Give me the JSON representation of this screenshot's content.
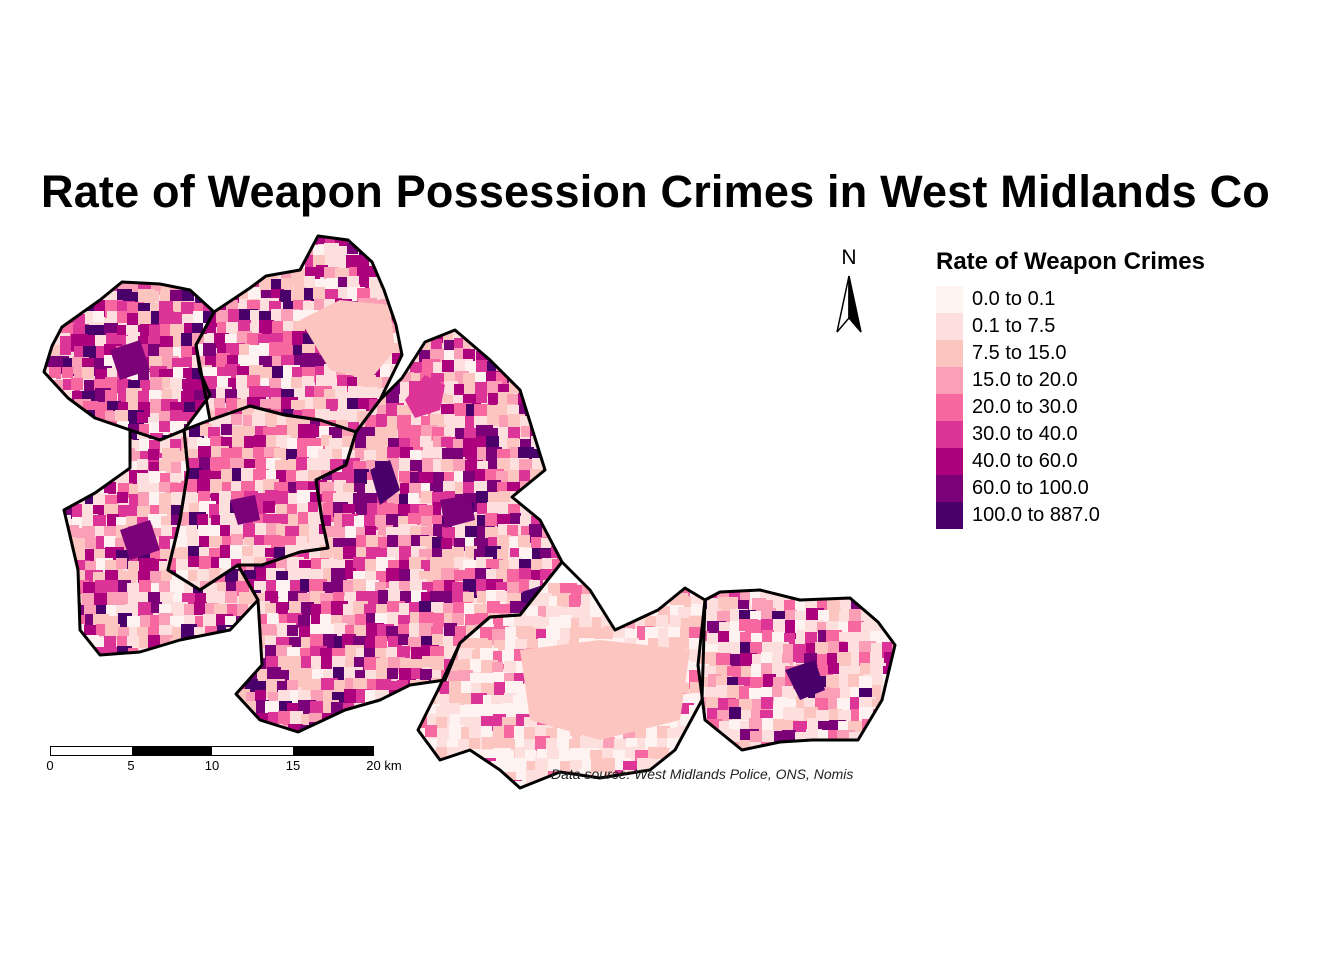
{
  "title": "Rate of Weapon Possession Crimes in West Midlands Co",
  "legend": {
    "title": "Rate of Weapon Crimes",
    "classes": [
      {
        "label": "0.0 to 0.1",
        "color": "#fff3f2"
      },
      {
        "label": "0.1 to 7.5",
        "color": "#fde0dd"
      },
      {
        "label": "7.5 to 15.0",
        "color": "#fcc5c0"
      },
      {
        "label": "15.0 to 20.0",
        "color": "#fa9fb5"
      },
      {
        "label": "20.0 to 30.0",
        "color": "#f768a1"
      },
      {
        "label": "30.0 to 40.0",
        "color": "#dd3497"
      },
      {
        "label": "40.0 to 60.0",
        "color": "#ae017e"
      },
      {
        "label": "60.0 to 100.0",
        "color": "#7a0177"
      },
      {
        "label": "100.0 to 887.0",
        "color": "#49006a"
      }
    ]
  },
  "north_arrow": {
    "letter": "N",
    "icon": "north-arrow-icon"
  },
  "scale_bar": {
    "ticks": [
      "0",
      "5",
      "10",
      "15",
      "20 km"
    ]
  },
  "source": "Data source: West Midlands Police, ONS, Nomis"
}
